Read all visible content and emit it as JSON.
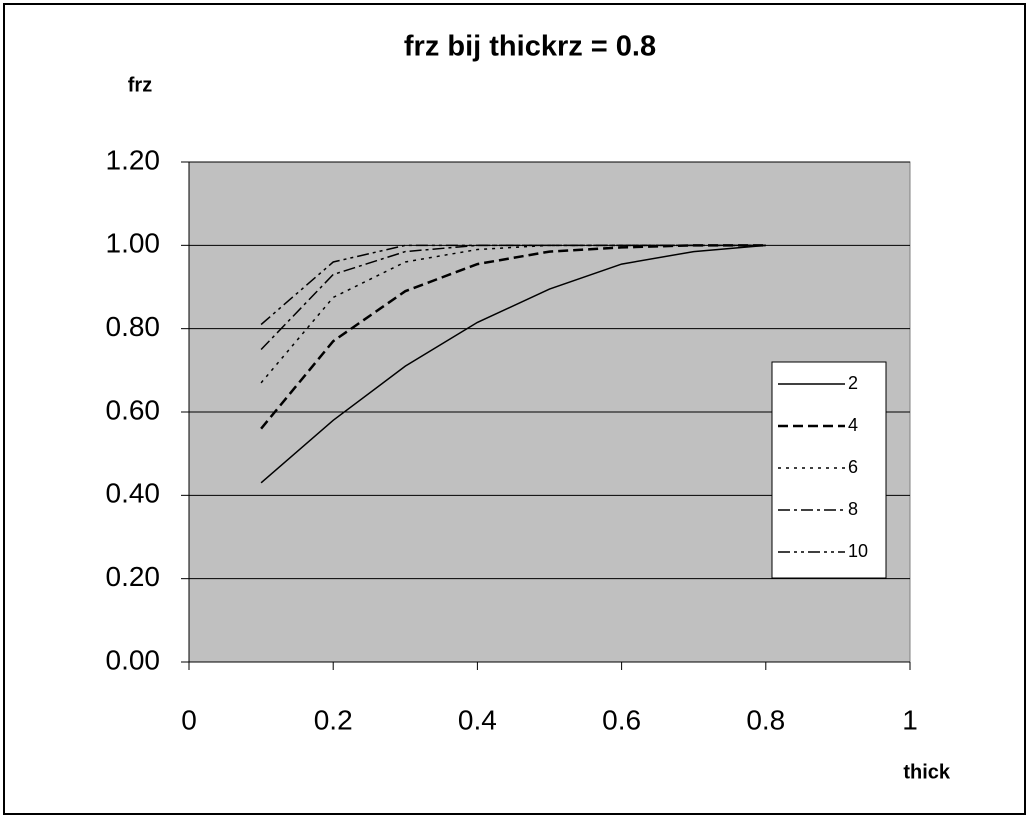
{
  "chart_data": {
    "type": "line",
    "title": "frz bij thickrz = 0.8",
    "y_label": "frz",
    "x_label": "thick",
    "x": [
      0.1,
      0.2,
      0.3,
      0.4,
      0.5,
      0.6,
      0.7,
      0.8
    ],
    "series": [
      {
        "name": "2",
        "color": "#000000",
        "values": [
          0.43,
          0.58,
          0.71,
          0.815,
          0.895,
          0.955,
          0.985,
          1.0
        ]
      },
      {
        "name": "4",
        "color": "#000000",
        "values": [
          0.56,
          0.77,
          0.89,
          0.955,
          0.985,
          0.995,
          1.0,
          1.0
        ]
      },
      {
        "name": "6",
        "color": "#000000",
        "values": [
          0.67,
          0.875,
          0.96,
          0.99,
          1.0,
          1.0,
          1.0,
          1.0
        ]
      },
      {
        "name": "8",
        "color": "#000000",
        "values": [
          0.75,
          0.93,
          0.985,
          1.0,
          1.0,
          1.0,
          1.0,
          1.0
        ]
      },
      {
        "name": "10",
        "color": "#000000",
        "values": [
          0.81,
          0.96,
          1.0,
          1.0,
          1.0,
          1.0,
          1.0,
          1.0
        ]
      }
    ],
    "xlim": [
      0,
      1
    ],
    "xticks": [
      0,
      0.2,
      0.4,
      0.6,
      0.8,
      1
    ],
    "ylim": [
      0,
      1.2
    ],
    "yticks": [
      {
        "value": 0,
        "label": "0.00"
      },
      {
        "value": 0.2,
        "label": "0.20"
      },
      {
        "value": 0.4,
        "label": "0.40"
      },
      {
        "value": 0.6,
        "label": "0.60"
      },
      {
        "value": 0.8,
        "label": "0.80"
      },
      {
        "value": 1.0,
        "label": "1.00"
      },
      {
        "value": 1.2,
        "label": "1.20"
      }
    ],
    "grid": true,
    "background": "#c0c0c0",
    "legend": "right"
  }
}
